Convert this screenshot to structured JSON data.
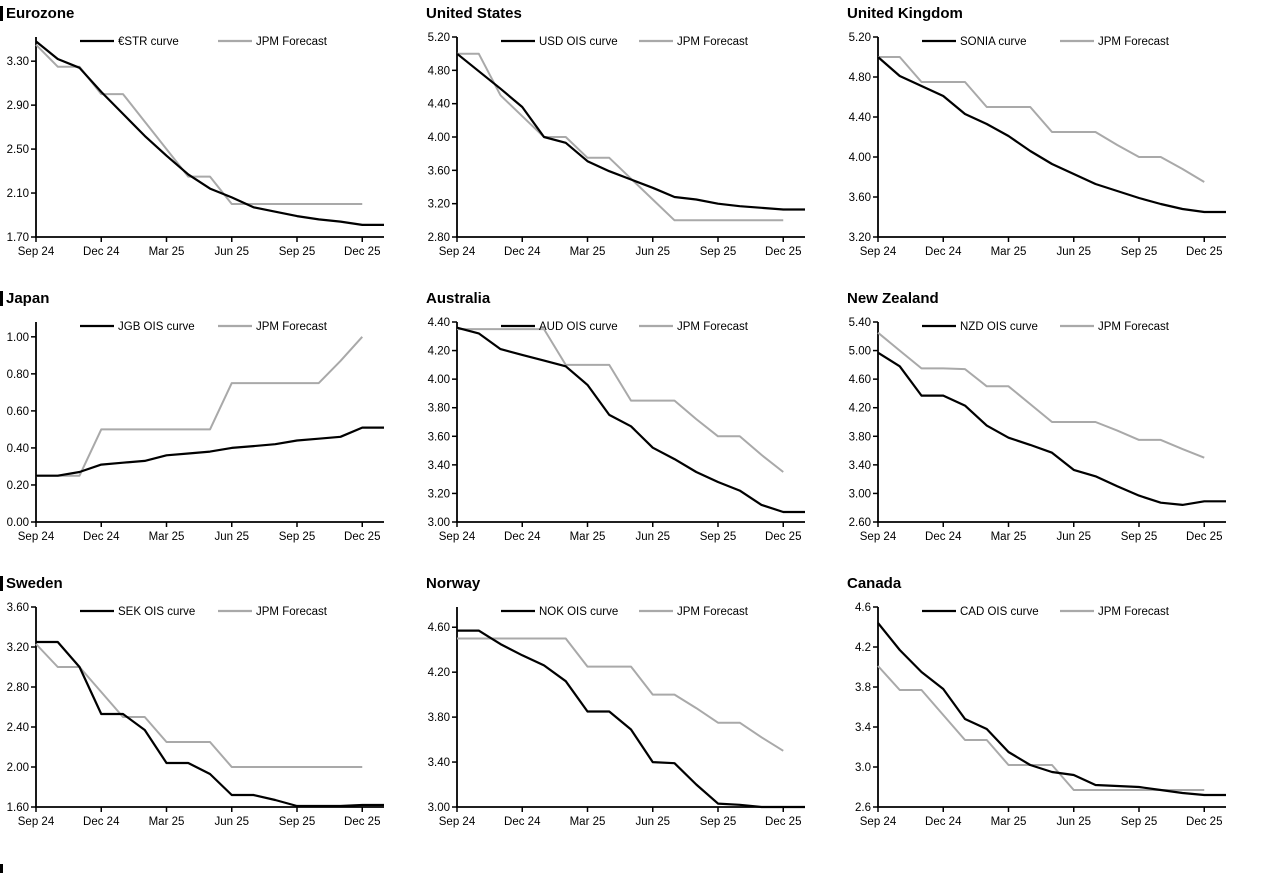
{
  "report": {
    "colors": {
      "series_black": "#000000",
      "series_gray": "#a9a9a9",
      "axis": "#000000"
    },
    "x_axis": {
      "months": [
        "Sep 24",
        "Oct 24",
        "Nov 24",
        "Dec 24",
        "Jan 25",
        "Feb 25",
        "Mar 25",
        "Apr 25",
        "May 25",
        "Jun 25",
        "Jul 25",
        "Aug 25",
        "Sep 25",
        "Oct 25",
        "Nov 25",
        "Dec 25"
      ],
      "tick_labels": [
        "Sep 24",
        "Dec 24",
        "Mar 25",
        "Jun 25",
        "Sep 25",
        "Dec 25"
      ],
      "tick_month_indices": [
        0,
        3,
        6,
        9,
        12,
        15
      ]
    },
    "forecast_label": "JPM Forecast"
  },
  "chart_data": [
    {
      "type": "line",
      "title": "Eurozone",
      "y_ticks": [
        1.7,
        2.1,
        2.5,
        2.9,
        3.3
      ],
      "ylim": [
        1.7,
        3.52
      ],
      "y_decimals": 2,
      "series": [
        {
          "name": "€STR curve",
          "color": "black",
          "values": [
            3.48,
            3.32,
            3.24,
            3.02,
            2.82,
            2.62,
            2.44,
            2.27,
            2.14,
            2.06,
            1.97,
            1.93,
            1.89,
            1.86,
            1.84,
            1.81
          ]
        },
        {
          "name": "JPM Forecast",
          "color": "gray",
          "values": [
            3.45,
            3.25,
            3.25,
            3.0,
            3.0,
            2.75,
            2.5,
            2.25,
            2.25,
            2.0,
            2.0,
            2.0,
            2.0,
            2.0,
            2.0,
            2.0
          ]
        }
      ]
    },
    {
      "type": "line",
      "title": "United States",
      "y_ticks": [
        2.8,
        3.2,
        3.6,
        4.0,
        4.4,
        4.8,
        5.2
      ],
      "ylim": [
        2.8,
        5.2
      ],
      "y_decimals": 2,
      "series": [
        {
          "name": "USD OIS curve",
          "color": "black",
          "values": [
            5.0,
            4.79,
            4.58,
            4.36,
            4.0,
            3.93,
            3.71,
            3.59,
            3.49,
            3.39,
            3.28,
            3.25,
            3.2,
            3.17,
            3.15,
            3.13
          ]
        },
        {
          "name": "JPM Forecast",
          "color": "gray",
          "values": [
            5.0,
            5.0,
            4.5,
            4.25,
            4.0,
            4.0,
            3.75,
            3.75,
            3.5,
            3.25,
            3.0,
            3.0,
            3.0,
            3.0,
            3.0,
            3.0
          ]
        }
      ]
    },
    {
      "type": "line",
      "title": "United Kingdom",
      "y_ticks": [
        3.2,
        3.6,
        4.0,
        4.4,
        4.8,
        5.2
      ],
      "ylim": [
        3.2,
        5.2
      ],
      "y_decimals": 2,
      "series": [
        {
          "name": "SONIA curve",
          "color": "black",
          "values": [
            5.0,
            4.81,
            4.71,
            4.61,
            4.43,
            4.33,
            4.21,
            4.06,
            3.93,
            3.83,
            3.73,
            3.66,
            3.59,
            3.53,
            3.48,
            3.45
          ]
        },
        {
          "name": "JPM Forecast",
          "color": "gray",
          "values": [
            5.0,
            5.0,
            4.75,
            4.75,
            4.75,
            4.5,
            4.5,
            4.5,
            4.25,
            4.25,
            4.25,
            4.12,
            4.0,
            4.0,
            3.88,
            3.75
          ]
        }
      ]
    },
    {
      "type": "line",
      "title": "Japan",
      "y_ticks": [
        0.0,
        0.2,
        0.4,
        0.6,
        0.8,
        1.0
      ],
      "ylim": [
        0.0,
        1.08
      ],
      "y_decimals": 2,
      "series": [
        {
          "name": "JGB OIS curve",
          "color": "black",
          "values": [
            0.25,
            0.25,
            0.27,
            0.31,
            0.32,
            0.33,
            0.36,
            0.37,
            0.38,
            0.4,
            0.41,
            0.42,
            0.44,
            0.45,
            0.46,
            0.51
          ]
        },
        {
          "name": "JPM Forecast",
          "color": "gray",
          "values": [
            0.25,
            0.25,
            0.25,
            0.5,
            0.5,
            0.5,
            0.5,
            0.5,
            0.5,
            0.75,
            0.75,
            0.75,
            0.75,
            0.75,
            0.87,
            1.0
          ]
        }
      ]
    },
    {
      "type": "line",
      "title": "Australia",
      "y_ticks": [
        3.0,
        3.2,
        3.4,
        3.6,
        3.8,
        4.0,
        4.2,
        4.4
      ],
      "ylim": [
        3.0,
        4.4
      ],
      "y_decimals": 2,
      "series": [
        {
          "name": "AUD OIS curve",
          "color": "black",
          "values": [
            4.36,
            4.32,
            4.21,
            4.17,
            4.13,
            4.09,
            3.96,
            3.75,
            3.67,
            3.52,
            3.44,
            3.35,
            3.28,
            3.22,
            3.12,
            3.07
          ]
        },
        {
          "name": "JPM Forecast",
          "color": "gray",
          "values": [
            4.35,
            4.35,
            4.35,
            4.35,
            4.35,
            4.1,
            4.1,
            4.1,
            3.85,
            3.85,
            3.85,
            3.72,
            3.6,
            3.6,
            3.47,
            3.35
          ]
        }
      ]
    },
    {
      "type": "line",
      "title": "New Zealand",
      "y_ticks": [
        2.6,
        3.0,
        3.4,
        3.8,
        4.2,
        4.6,
        5.0,
        5.4
      ],
      "ylim": [
        2.6,
        5.4
      ],
      "y_decimals": 2,
      "series": [
        {
          "name": "NZD OIS curve",
          "color": "black",
          "values": [
            4.97,
            4.78,
            4.37,
            4.37,
            4.23,
            3.95,
            3.78,
            3.68,
            3.57,
            3.33,
            3.24,
            3.1,
            2.97,
            2.87,
            2.84,
            2.89
          ]
        },
        {
          "name": "JPM Forecast",
          "color": "gray",
          "values": [
            5.25,
            5.0,
            4.75,
            4.75,
            4.74,
            4.5,
            4.5,
            4.25,
            4.0,
            4.0,
            4.0,
            3.88,
            3.75,
            3.75,
            3.62,
            3.5
          ]
        }
      ]
    },
    {
      "type": "line",
      "title": "Sweden",
      "y_ticks": [
        1.6,
        2.0,
        2.4,
        2.8,
        3.2,
        3.6
      ],
      "ylim": [
        1.6,
        3.6
      ],
      "y_decimals": 2,
      "series": [
        {
          "name": "SEK OIS curve",
          "color": "black",
          "values": [
            3.25,
            3.25,
            3.0,
            2.53,
            2.53,
            2.37,
            2.04,
            2.04,
            1.93,
            1.72,
            1.72,
            1.67,
            1.61,
            1.61,
            1.61,
            1.62
          ]
        },
        {
          "name": "JPM Forecast",
          "color": "gray",
          "values": [
            3.23,
            3.0,
            3.0,
            2.75,
            2.5,
            2.5,
            2.25,
            2.25,
            2.25,
            2.0,
            2.0,
            2.0,
            2.0,
            2.0,
            2.0,
            2.0
          ]
        }
      ]
    },
    {
      "type": "line",
      "title": "Norway",
      "y_ticks": [
        3.0,
        3.4,
        3.8,
        4.2,
        4.6
      ],
      "ylim": [
        3.0,
        4.78
      ],
      "y_decimals": 2,
      "series": [
        {
          "name": "NOK OIS curve",
          "color": "black",
          "values": [
            4.57,
            4.57,
            4.45,
            4.35,
            4.26,
            4.12,
            3.85,
            3.85,
            3.69,
            3.4,
            3.39,
            3.2,
            3.03,
            3.02,
            3.0,
            3.0
          ]
        },
        {
          "name": "JPM Forecast",
          "color": "gray",
          "values": [
            4.5,
            4.5,
            4.5,
            4.5,
            4.5,
            4.5,
            4.25,
            4.25,
            4.25,
            4.0,
            4.0,
            3.88,
            3.75,
            3.75,
            3.62,
            3.5
          ]
        }
      ]
    },
    {
      "type": "line",
      "title": "Canada",
      "y_ticks": [
        2.6,
        3.0,
        3.4,
        3.8,
        4.2,
        4.6
      ],
      "ylim": [
        2.6,
        4.6
      ],
      "y_decimals": 1,
      "series": [
        {
          "name": "CAD OIS curve",
          "color": "black",
          "values": [
            4.44,
            4.17,
            3.95,
            3.78,
            3.48,
            3.38,
            3.15,
            3.02,
            2.95,
            2.92,
            2.82,
            2.81,
            2.8,
            2.77,
            2.74,
            2.72
          ]
        },
        {
          "name": "JPM Forecast",
          "color": "gray",
          "values": [
            4.01,
            3.77,
            3.77,
            3.52,
            3.27,
            3.27,
            3.02,
            3.02,
            3.02,
            2.77,
            2.77,
            2.77,
            2.77,
            2.77,
            2.77,
            2.77
          ]
        }
      ]
    }
  ]
}
